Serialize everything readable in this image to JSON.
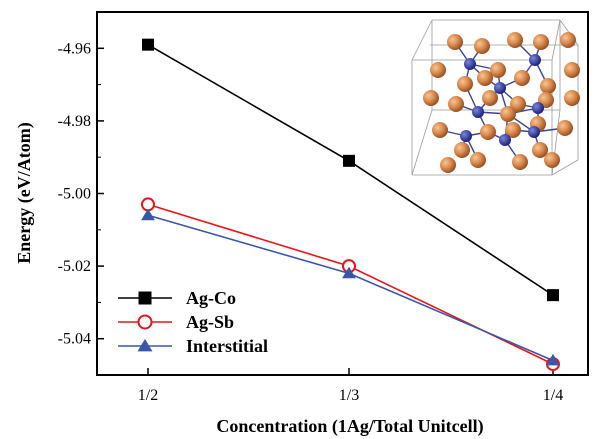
{
  "chart_data": {
    "type": "line",
    "xlabel": "Concentration (1Ag/Total Unitcell)",
    "ylabel": "Energy (eV/Atom)",
    "categories": [
      "1/2",
      "1/3",
      "1/4"
    ],
    "ylim": [
      -5.05,
      -4.95
    ],
    "yticks": [
      "-4.96",
      "-4.98",
      "-5.00",
      "-5.02",
      "-5.04"
    ],
    "ytick_values": [
      -4.96,
      -4.98,
      -5.0,
      -5.02,
      -5.04
    ],
    "grid": false,
    "legend_position": "bottom-left",
    "inset": "crystal-structure-image",
    "series": [
      {
        "name": "Ag-Co",
        "marker": "square-filled",
        "color": "#000000",
        "values": [
          -4.959,
          -4.991,
          -5.028
        ]
      },
      {
        "name": "Ag-Sb",
        "marker": "circle-open",
        "color": "#e8141b",
        "values": [
          -5.003,
          -5.02,
          -5.047
        ]
      },
      {
        "name": "Interstitial",
        "marker": "triangle-filled",
        "color": "#3a56a8",
        "values": [
          -5.006,
          -5.022,
          -5.046
        ]
      }
    ]
  }
}
